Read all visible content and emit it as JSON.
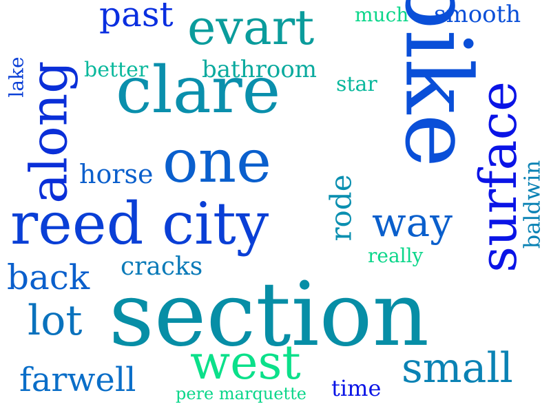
{
  "words": [
    {
      "id": "section",
      "text": "section",
      "color": "#078ea6"
    },
    {
      "id": "bike",
      "text": "bike",
      "color": "#0a4fd8"
    },
    {
      "id": "clare",
      "text": "clare",
      "color": "#0a8fac"
    },
    {
      "id": "reed-city",
      "text": "reed city",
      "color": "#0a3fd6"
    },
    {
      "id": "one",
      "text": "one",
      "color": "#0a5fcd"
    },
    {
      "id": "surface",
      "text": "surface",
      "color": "#0a14e6"
    },
    {
      "id": "along",
      "text": "along",
      "color": "#0a2fd8"
    },
    {
      "id": "evart",
      "text": "evart",
      "color": "#0a9c9c"
    },
    {
      "id": "west",
      "text": "west",
      "color": "#0be08a"
    },
    {
      "id": "small",
      "text": "small",
      "color": "#0a82b4"
    },
    {
      "id": "way",
      "text": "way",
      "color": "#0a5fcc"
    },
    {
      "id": "lot",
      "text": "lot",
      "color": "#0a72bd"
    },
    {
      "id": "back",
      "text": "back",
      "color": "#0a5fcc"
    },
    {
      "id": "farwell",
      "text": "farwell",
      "color": "#0a6ec8"
    },
    {
      "id": "past",
      "text": "past",
      "color": "#0a2fe0"
    },
    {
      "id": "rode",
      "text": "rode",
      "color": "#0a8fb0"
    },
    {
      "id": "horse",
      "text": "horse",
      "color": "#0a5fcc"
    },
    {
      "id": "cracks",
      "text": "cracks",
      "color": "#0a7ab8"
    },
    {
      "id": "bathroom",
      "text": "bathroom",
      "color": "#0aaa9e"
    },
    {
      "id": "smooth",
      "text": "smooth",
      "color": "#0a4fd8"
    },
    {
      "id": "better",
      "text": "better",
      "color": "#0ab89c"
    },
    {
      "id": "baldwin",
      "text": "baldwin",
      "color": "#0a82b4"
    },
    {
      "id": "star",
      "text": "star",
      "color": "#0ab89c"
    },
    {
      "id": "much",
      "text": "much",
      "color": "#0bd68a"
    },
    {
      "id": "lake",
      "text": "lake",
      "color": "#0a3fd6"
    },
    {
      "id": "really",
      "text": "really",
      "color": "#0bd68a"
    },
    {
      "id": "time",
      "text": "time",
      "color": "#0a14e6"
    },
    {
      "id": "pere-marquette",
      "text": "pere marquette",
      "color": "#0bd68a"
    }
  ]
}
